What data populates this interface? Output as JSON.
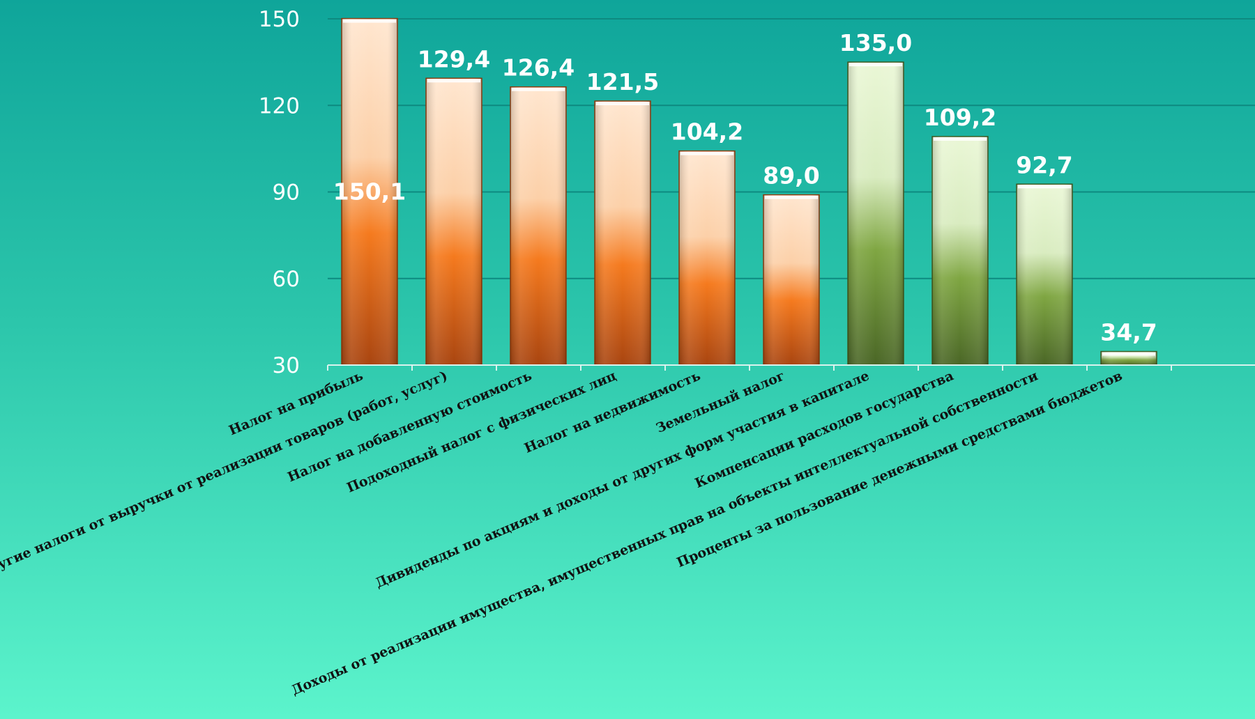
{
  "chart_data": {
    "type": "bar",
    "title": "",
    "xlabel": "",
    "ylabel": "",
    "ylim": [
      30,
      150
    ],
    "yticks": [
      30,
      60,
      90,
      120,
      150
    ],
    "yticks_labels": [
      "30",
      "60",
      "90",
      "120",
      "150"
    ],
    "grid": true,
    "legend": "none",
    "categories": [
      "Налог на прибыль",
      "Другие налоги от выручки от реализации товаров (работ, услуг)",
      "Налог на добавленную стоимость",
      "Подоходный налог с физических лиц",
      "Налог на недвижимость",
      "Земельный налог",
      "Дивиденды по акциям и доходы от других форм участия в капитале",
      "Компенсации расходов государства",
      "Доходы от реализации  имущества, имущественных прав на объекты интеллектуальной собственности",
      "Проценты за пользование денежными средствами бюджетов"
    ],
    "values": [
      150.1,
      129.4,
      126.4,
      121.5,
      104.2,
      89.0,
      135.0,
      109.2,
      92.7,
      34.7
    ],
    "value_labels": [
      "150,1",
      "129,4",
      "126,4",
      "121,5",
      "104,2",
      "89,0",
      "135,0",
      "109,2",
      "92,7",
      "34,7"
    ],
    "bar_groups": [
      "orange",
      "orange",
      "orange",
      "orange",
      "orange",
      "orange",
      "green",
      "green",
      "green",
      "green"
    ],
    "colors": {
      "orange_top": "#ffe3c8",
      "orange_mid": "#f57a1e",
      "orange_bottom": "#b04a12",
      "green_top": "#e6f5cf",
      "green_mid": "#7fa642",
      "green_bottom": "#4c6a27",
      "gridline": "#0e8a80",
      "axis": "#d9f3ee",
      "tick_text": "#ffffff",
      "value_text": "#ffffff",
      "category_text": "#111111"
    }
  }
}
